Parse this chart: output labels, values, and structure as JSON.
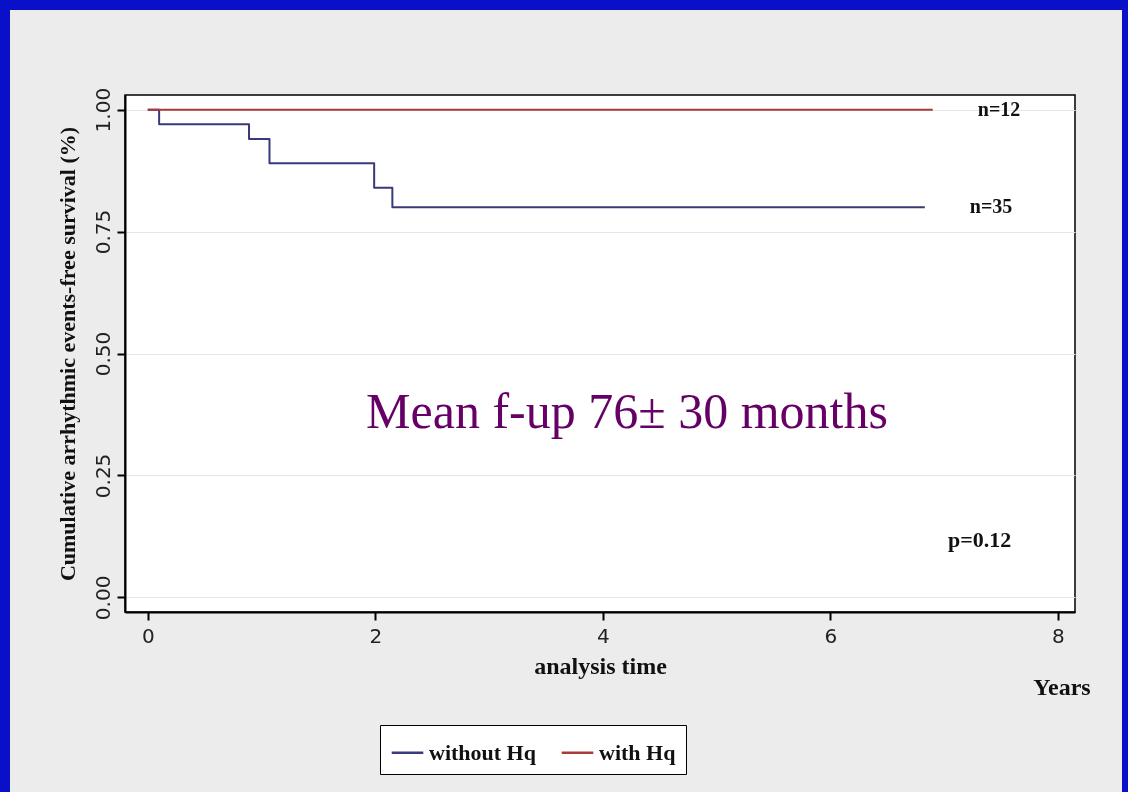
{
  "chart_data": {
    "type": "step",
    "ylabel": "Cumulative arrhythmic events-free survival (%)",
    "xlabel": "analysis time",
    "xlim": [
      -0.2,
      8.15
    ],
    "xticks": [
      0,
      2,
      4,
      6,
      8
    ],
    "ylim": [
      -0.03,
      1.03
    ],
    "yticks": [
      {
        "value": 0,
        "label": "0.00"
      },
      {
        "value": 0.25,
        "label": "0.25"
      },
      {
        "value": 0.5,
        "label": "0.50"
      },
      {
        "value": 0.75,
        "label": "0.75"
      },
      {
        "value": 1,
        "label": "1.00"
      }
    ],
    "grid": "y",
    "legend": "bottom",
    "series": [
      {
        "name": "without Hq",
        "color": "#3a3a7a",
        "x": [
          0,
          0.1,
          0.89,
          1.07,
          1.99,
          2.15,
          6.83
        ],
        "values": [
          1,
          0.97,
          0.94,
          0.89,
          0.84,
          0.8,
          0.8
        ]
      },
      {
        "name": "with Hq",
        "color": "#a83a3a",
        "x": [
          0,
          6.9
        ],
        "values": [
          1,
          1
        ]
      }
    ],
    "annotations": [
      {
        "text": "n=12",
        "x": 6.9,
        "y": 1
      },
      {
        "text": "n=35",
        "x": 6.83,
        "y": 0.8
      },
      "Mean f-up 76± 30 months",
      "p=0.12",
      "Years"
    ]
  }
}
